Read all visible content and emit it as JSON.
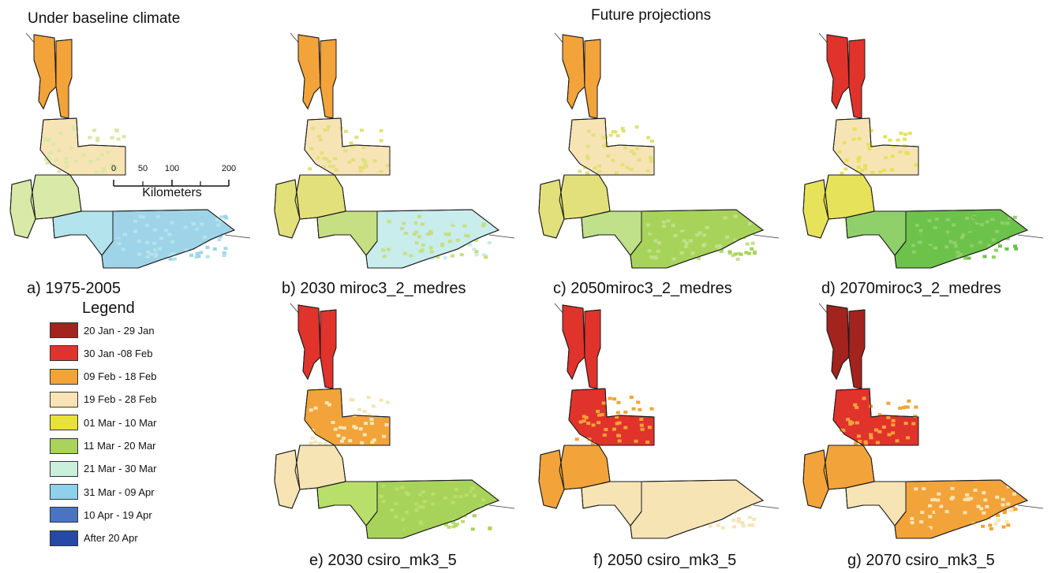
{
  "headings": {
    "baseline": "Under baseline climate",
    "future": "Future projections"
  },
  "panels": [
    {
      "id": "a",
      "letter": "a)",
      "label": "1975-2005",
      "scheme": [
        "#9fd4e8",
        "#b3e3ec",
        "#f6e4b5",
        "#f2a33a",
        "#d8e9a8"
      ]
    },
    {
      "id": "b",
      "letter": "b)",
      "label": "2030 miroc3_2_medres",
      "scheme": [
        "#c9ecec",
        "#c6df82",
        "#f6e4b5",
        "#f2a33a",
        "#e2e07a"
      ]
    },
    {
      "id": "c",
      "letter": "c)",
      "label": "2050miroc3_2_medres",
      "scheme": [
        "#a8d35a",
        "#c0e08a",
        "#f6e4b5",
        "#f2a33a",
        "#e2e07a"
      ]
    },
    {
      "id": "d",
      "letter": "d)",
      "label": "2070miroc3_2_medres",
      "scheme": [
        "#6cc24a",
        "#8fd06a",
        "#f6e4b5",
        "#e0332b",
        "#e6e25a"
      ]
    },
    {
      "id": "e",
      "letter": "e)",
      "label": "2030 csiro_mk3_5",
      "scheme": [
        "#a8d35a",
        "#b8df6a",
        "#f2a33a",
        "#e0332b",
        "#f6e4b5"
      ]
    },
    {
      "id": "f",
      "letter": "f)",
      "label": "2050 csiro_mk3_5",
      "scheme": [
        "#f6e4b5",
        "#f6e4b5",
        "#e0332b",
        "#e0332b",
        "#f2a33a"
      ]
    },
    {
      "id": "g",
      "letter": "g)",
      "label": "2070 csiro_mk3_5",
      "scheme": [
        "#f2a33a",
        "#f6e4b5",
        "#e0332b",
        "#a3231e",
        "#f2a33a"
      ]
    }
  ],
  "legend": {
    "title": "Legend",
    "items": [
      {
        "label": "20 Jan - 29 Jan",
        "color": "#a3231e"
      },
      {
        "label": "30 Jan -08 Feb",
        "color": "#e0332b"
      },
      {
        "label": "09 Feb - 18 Feb",
        "color": "#f2a33a"
      },
      {
        "label": "19 Feb - 28 Feb",
        "color": "#f9e3b4"
      },
      {
        "label": "01 Mar - 10 Mar",
        "color": "#e6e23a"
      },
      {
        "label": "11 Mar - 20 Mar",
        "color": "#a9d35a"
      },
      {
        "label": "21 Mar - 30 Mar",
        "color": "#c9f0dc"
      },
      {
        "label": "31 Mar - 09 Apr",
        "color": "#8fd1ea"
      },
      {
        "label": "10 Apr - 19 Apr",
        "color": "#4a73c4"
      },
      {
        "label": "After  20 Apr",
        "color": "#2549a4"
      }
    ]
  },
  "scale": {
    "ticks": [
      "0",
      "50",
      "100",
      "200"
    ],
    "unit": "Kilometers"
  }
}
